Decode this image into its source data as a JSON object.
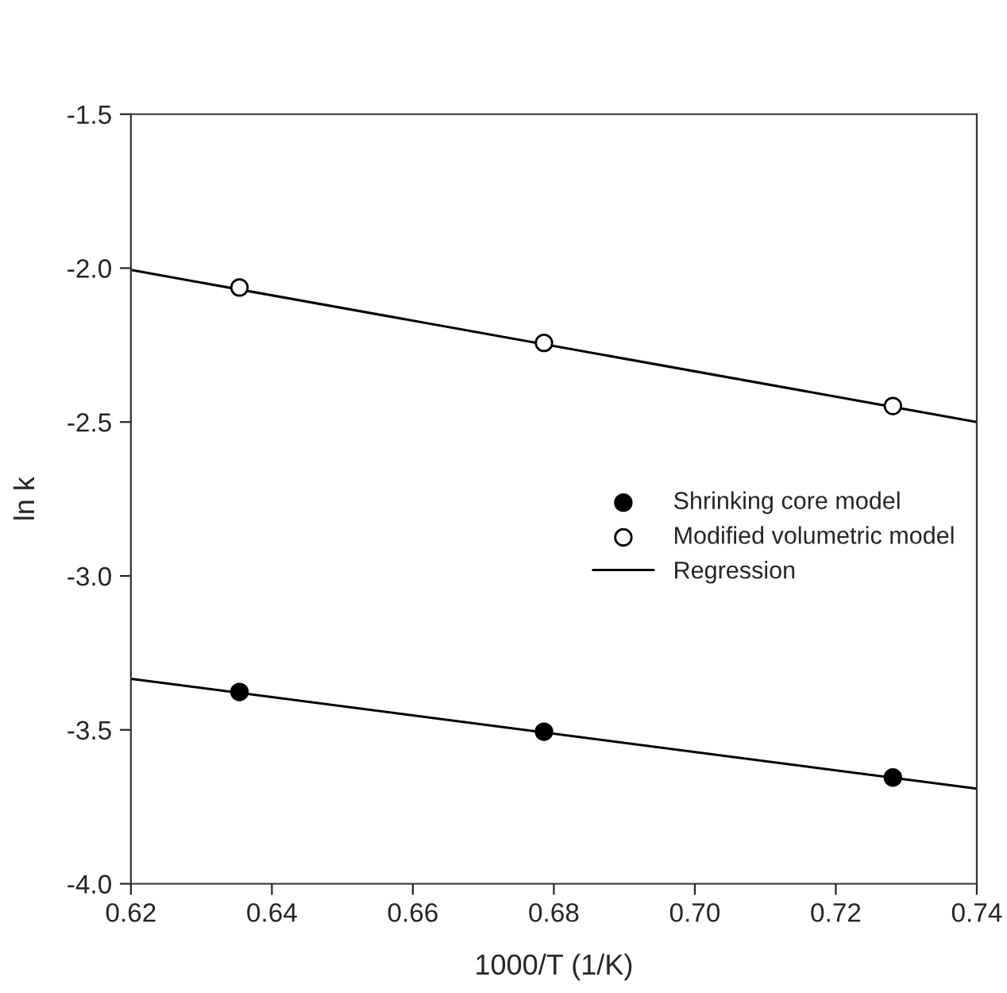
{
  "chart_data": {
    "type": "scatter",
    "xlabel": "1000/T (1/K)",
    "ylabel": "ln k",
    "xlim": [
      0.62,
      0.74
    ],
    "ylim": [
      -4.0,
      -1.5
    ],
    "xticks": [
      {
        "value": 0.62,
        "label": "0.62"
      },
      {
        "value": 0.64,
        "label": "0.64"
      },
      {
        "value": 0.66,
        "label": "0.66"
      },
      {
        "value": 0.68,
        "label": "0.68"
      },
      {
        "value": 0.7,
        "label": "0.70"
      },
      {
        "value": 0.72,
        "label": "0.72"
      },
      {
        "value": 0.74,
        "label": "0.74"
      }
    ],
    "yticks": [
      {
        "value": -4.0,
        "label": "-4.0"
      },
      {
        "value": -3.5,
        "label": "-3.5"
      },
      {
        "value": -3.0,
        "label": "-3.0"
      },
      {
        "value": -2.5,
        "label": "-2.5"
      },
      {
        "value": -2.0,
        "label": "-2.0"
      },
      {
        "value": -1.5,
        "label": "-1.5"
      }
    ],
    "grid": false,
    "legend": "right",
    "series": [
      {
        "name": "Shrinking core model",
        "color": "#000000",
        "x": [
          0.6354,
          0.6786,
          0.7281
        ],
        "values": [
          -3.377,
          -3.506,
          -3.655
        ]
      },
      {
        "name": "Modified volumetric model",
        "color": "#ffffff",
        "x": [
          0.6354,
          0.6786,
          0.7281
        ],
        "values": [
          -2.063,
          -2.243,
          -2.448
        ]
      },
      {
        "name": "Regression",
        "type": "line",
        "marker": "none",
        "color": "#000000",
        "x": [
          0.62,
          0.74
        ],
        "values": [
          -2.006,
          -2.5
        ]
      },
      {
        "type": "line",
        "marker": "none",
        "color": "#000000",
        "x": [
          0.62,
          0.74
        ],
        "values": [
          -3.334,
          -3.691
        ]
      }
    ]
  }
}
